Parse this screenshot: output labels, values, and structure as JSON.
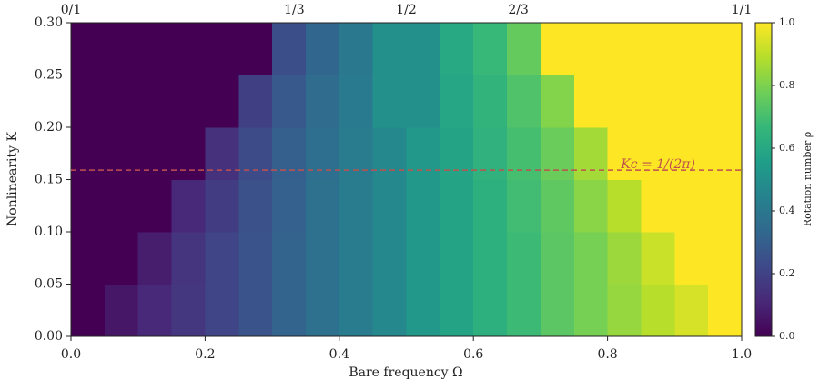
{
  "chart_data": {
    "type": "heatmap",
    "xlabel": "Bare frequency Ω",
    "ylabel": "Nonlinearity K",
    "xlim": [
      0,
      1
    ],
    "ylim": [
      0,
      0.3
    ],
    "xticks": [
      {
        "value": 0,
        "label": "0.0"
      },
      {
        "value": 0.2,
        "label": "0.2"
      },
      {
        "value": 0.4,
        "label": "0.4"
      },
      {
        "value": 0.6,
        "label": "0.6"
      },
      {
        "value": 0.8,
        "label": "0.8"
      },
      {
        "value": 1,
        "label": "1.0"
      }
    ],
    "yticks": [
      {
        "value": 0,
        "label": "0.00"
      },
      {
        "value": 0.05,
        "label": "0.05"
      },
      {
        "value": 0.1,
        "label": "0.10"
      },
      {
        "value": 0.15,
        "label": "0.15"
      },
      {
        "value": 0.2,
        "label": "0.20"
      },
      {
        "value": 0.25,
        "label": "0.25"
      },
      {
        "value": 0.3,
        "label": "0.30"
      }
    ],
    "x_bins": [
      0,
      0.05,
      0.1,
      0.15,
      0.2,
      0.25,
      0.3,
      0.35,
      0.4,
      0.45,
      0.5,
      0.55,
      0.6,
      0.65,
      0.7,
      0.75,
      0.8,
      0.85,
      0.9,
      0.95,
      1
    ],
    "y_bins": [
      0,
      0.05,
      0.1,
      0.15,
      0.2,
      0.25,
      0.3
    ],
    "z": [
      [
        0,
        0.06,
        0.11,
        0.16,
        0.21,
        0.26,
        0.32,
        0.37,
        0.42,
        0.47,
        0.53,
        0.58,
        0.63,
        0.68,
        0.74,
        0.79,
        0.84,
        0.89,
        0.94,
        1
      ],
      [
        0,
        0,
        0.08,
        0.15,
        0.21,
        0.26,
        0.32,
        0.37,
        0.42,
        0.47,
        0.53,
        0.58,
        0.63,
        0.68,
        0.74,
        0.79,
        0.85,
        0.92,
        1,
        1
      ],
      [
        0,
        0,
        0,
        0.11,
        0.18,
        0.25,
        0.31,
        0.37,
        0.42,
        0.47,
        0.53,
        0.58,
        0.63,
        0.69,
        0.75,
        0.82,
        0.89,
        1,
        1,
        1
      ],
      [
        0,
        0,
        0,
        0,
        0.14,
        0.23,
        0.3,
        0.36,
        0.42,
        0.47,
        0.53,
        0.58,
        0.64,
        0.7,
        0.77,
        0.86,
        1,
        1,
        1,
        1
      ],
      [
        0,
        0,
        0,
        0,
        0,
        0.19,
        0.28,
        0.35,
        0.41,
        0.5,
        0.5,
        0.59,
        0.65,
        0.72,
        0.81,
        1,
        1,
        1,
        1,
        1
      ],
      [
        0,
        0,
        0,
        0,
        0,
        0,
        0.24,
        0.33,
        0.4,
        0.5,
        0.5,
        0.6,
        0.67,
        0.76,
        1,
        1,
        1,
        1,
        1,
        1
      ]
    ],
    "colormap": "viridis",
    "colorbar": {
      "label": "Rotation number ρ",
      "lim": [
        0,
        1
      ],
      "ticks": [
        {
          "value": 0,
          "label": "0.0"
        },
        {
          "value": 0.2,
          "label": "0.2"
        },
        {
          "value": 0.4,
          "label": "0.4"
        },
        {
          "value": 0.6,
          "label": "0.6"
        },
        {
          "value": 0.8,
          "label": "0.8"
        },
        {
          "value": 1,
          "label": "1.0"
        }
      ]
    },
    "top_annotations": [
      {
        "label": "0/1",
        "x": 0
      },
      {
        "label": "1/3",
        "x": 0.333
      },
      {
        "label": "1/2",
        "x": 0.5
      },
      {
        "label": "2/3",
        "x": 0.667
      },
      {
        "label": "1/1",
        "x": 1
      }
    ],
    "hline": {
      "y": 0.159,
      "label": "Kc = 1/(2π)",
      "color": "#c0504d"
    }
  }
}
